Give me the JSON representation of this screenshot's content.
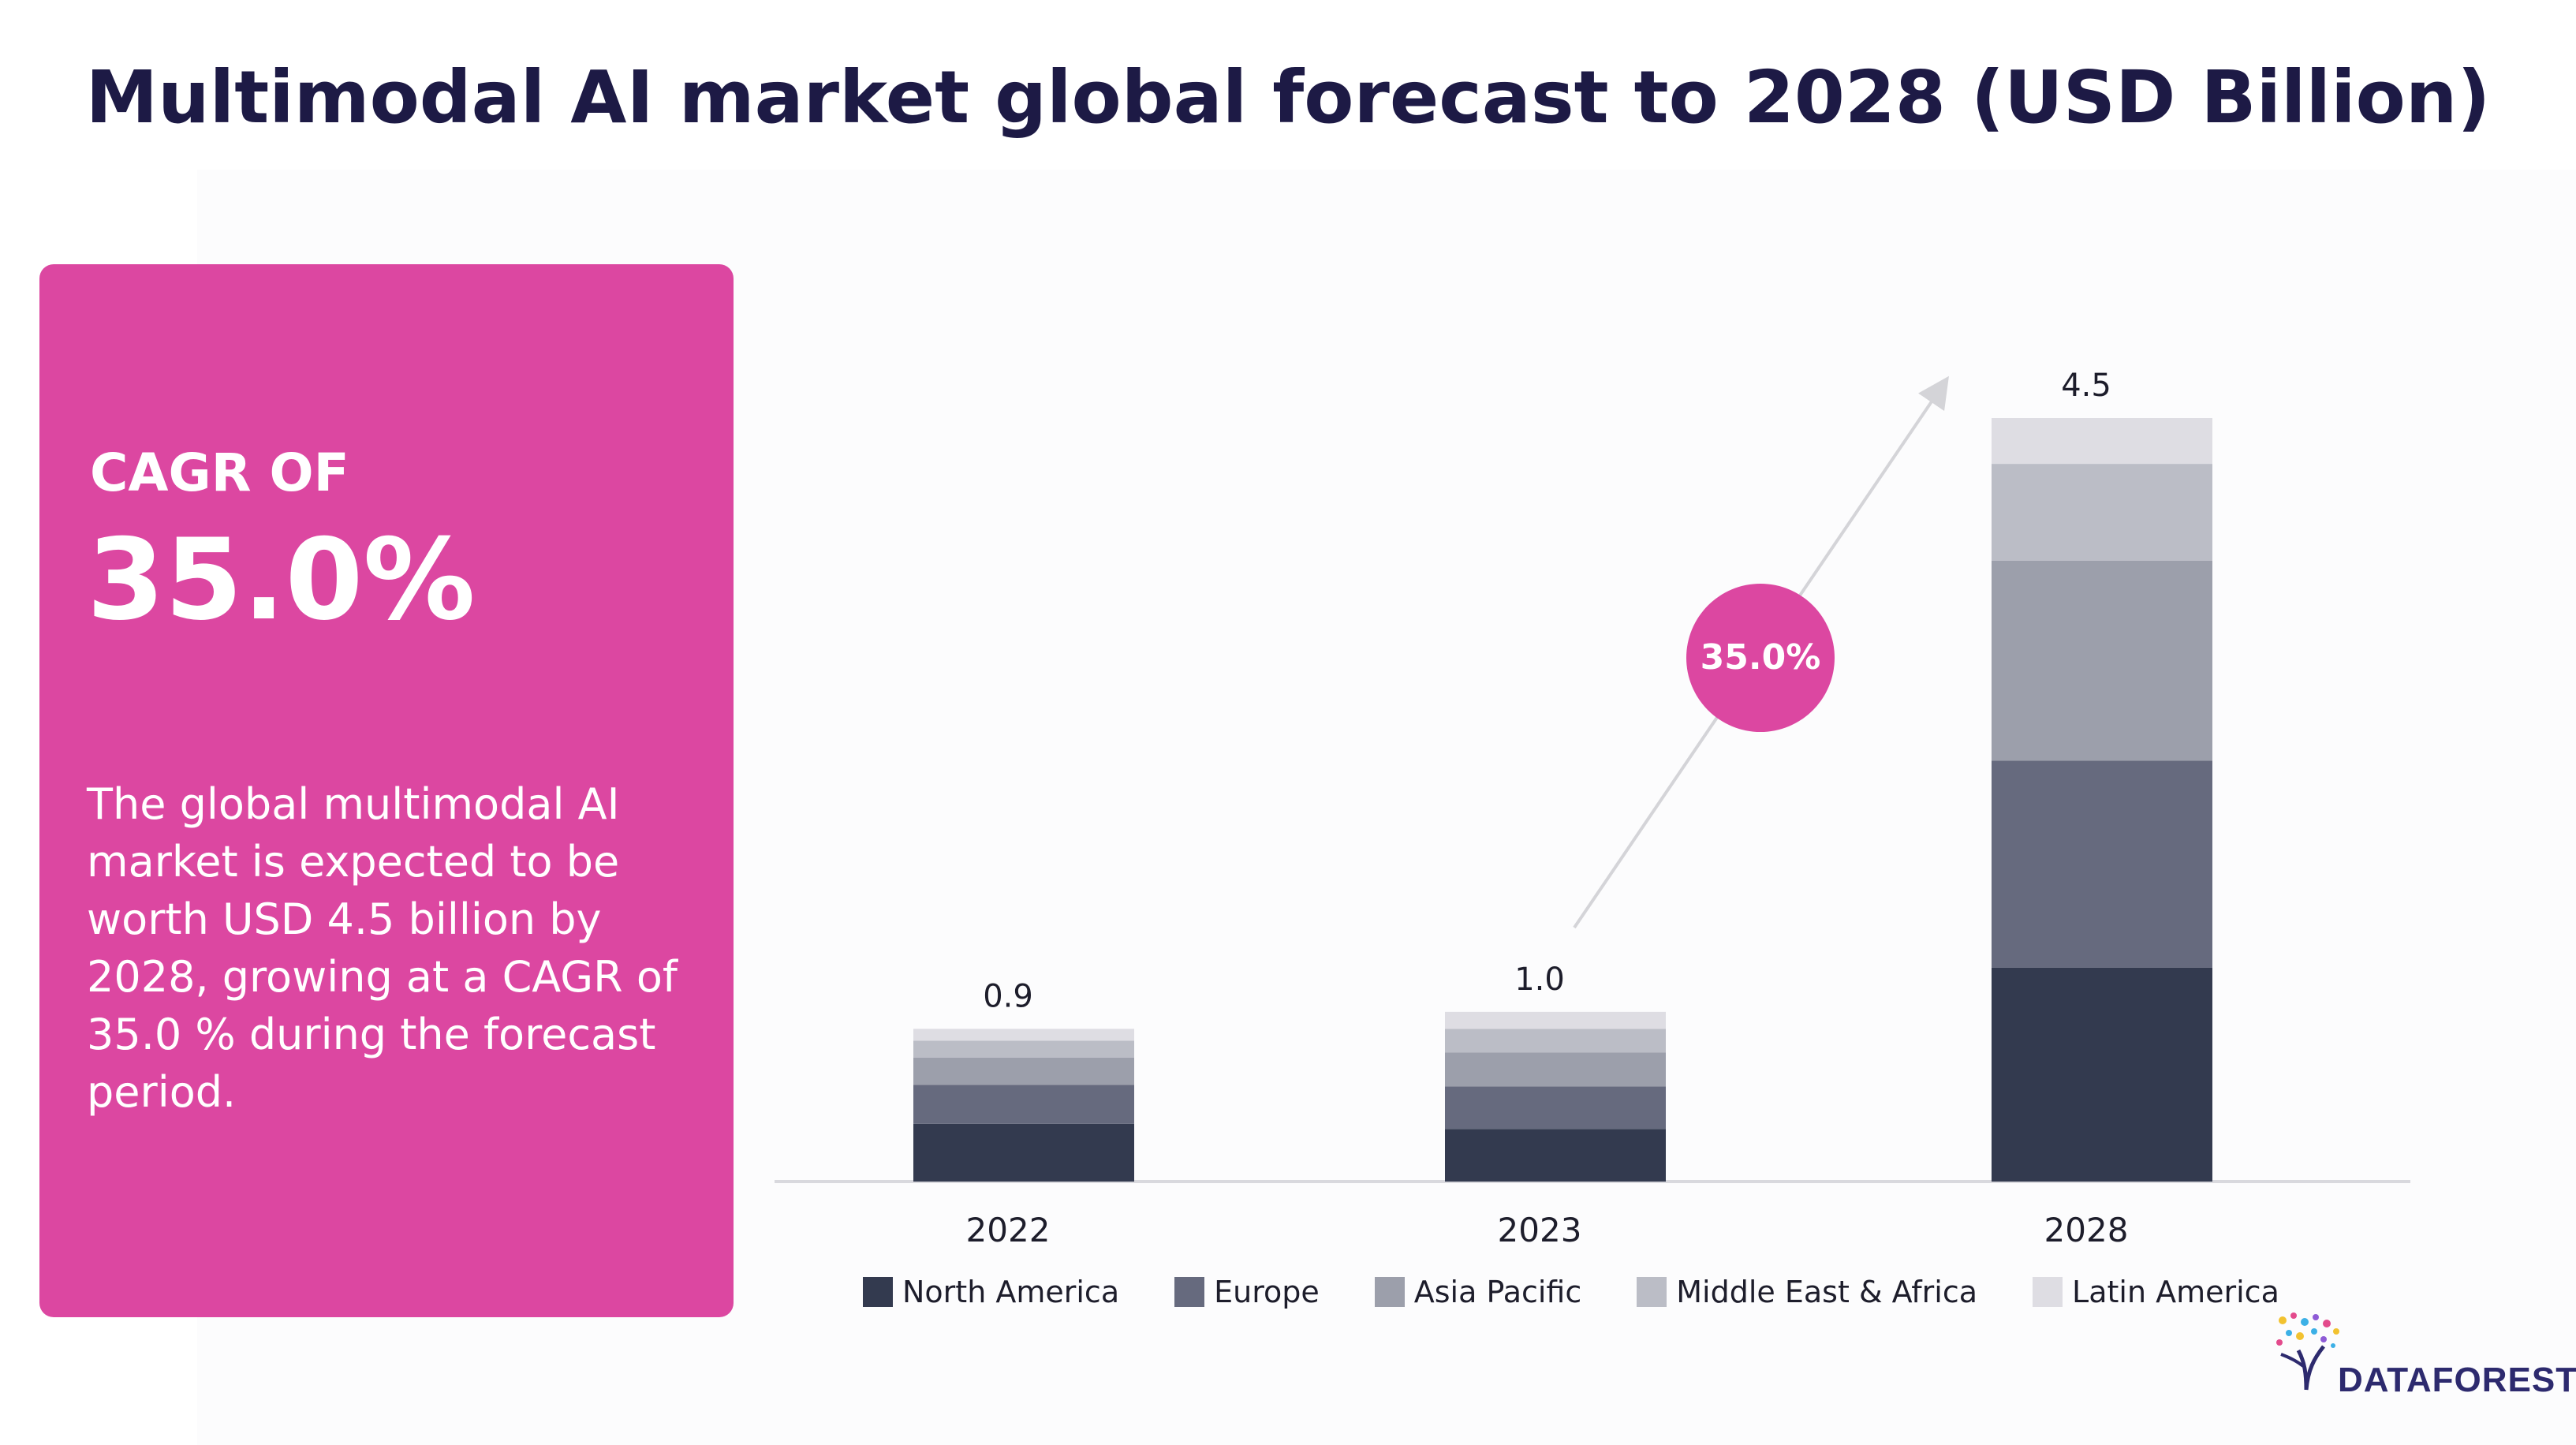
{
  "title": "Multimodal AI market global forecast to 2028 (USD Billion)",
  "cagr_card": {
    "label": "CAGR OF",
    "value": "35.0%",
    "description": "The global multimodal AI market is expected to be worth USD 4.5 billion by 2028, growing at a CAGR of 35.0 % during the forecast period.",
    "color": "#dc47a1"
  },
  "chart_data": {
    "type": "bar",
    "stacked": true,
    "categories": [
      "2022",
      "2023",
      "2028"
    ],
    "totals": [
      0.9,
      1.0,
      4.5
    ],
    "total_labels": [
      "0.9",
      "1.0",
      "4.5"
    ],
    "series": [
      {
        "name": "North America",
        "color": "#333a4f",
        "values": [
          0.34,
          0.31,
          1.26
        ]
      },
      {
        "name": "Europe",
        "color": "#666a7e",
        "values": [
          0.23,
          0.25,
          1.22
        ]
      },
      {
        "name": "Asia Pacific",
        "color": "#9c9fab",
        "values": [
          0.16,
          0.2,
          1.18
        ]
      },
      {
        "name": "Middle East & Africa",
        "color": "#bbbdc6",
        "values": [
          0.1,
          0.14,
          0.57
        ]
      },
      {
        "name": "Latin America",
        "color": "#dedde3",
        "values": [
          0.07,
          0.1,
          0.27
        ]
      }
    ],
    "ylim": [
      0,
      4.5
    ],
    "grid": false,
    "legend_position": "bottom",
    "annotation": {
      "label": "35.0%",
      "color": "#dc47a1"
    }
  },
  "brand": {
    "name": "DATAFOREST",
    "icon": "tree-logo"
  }
}
